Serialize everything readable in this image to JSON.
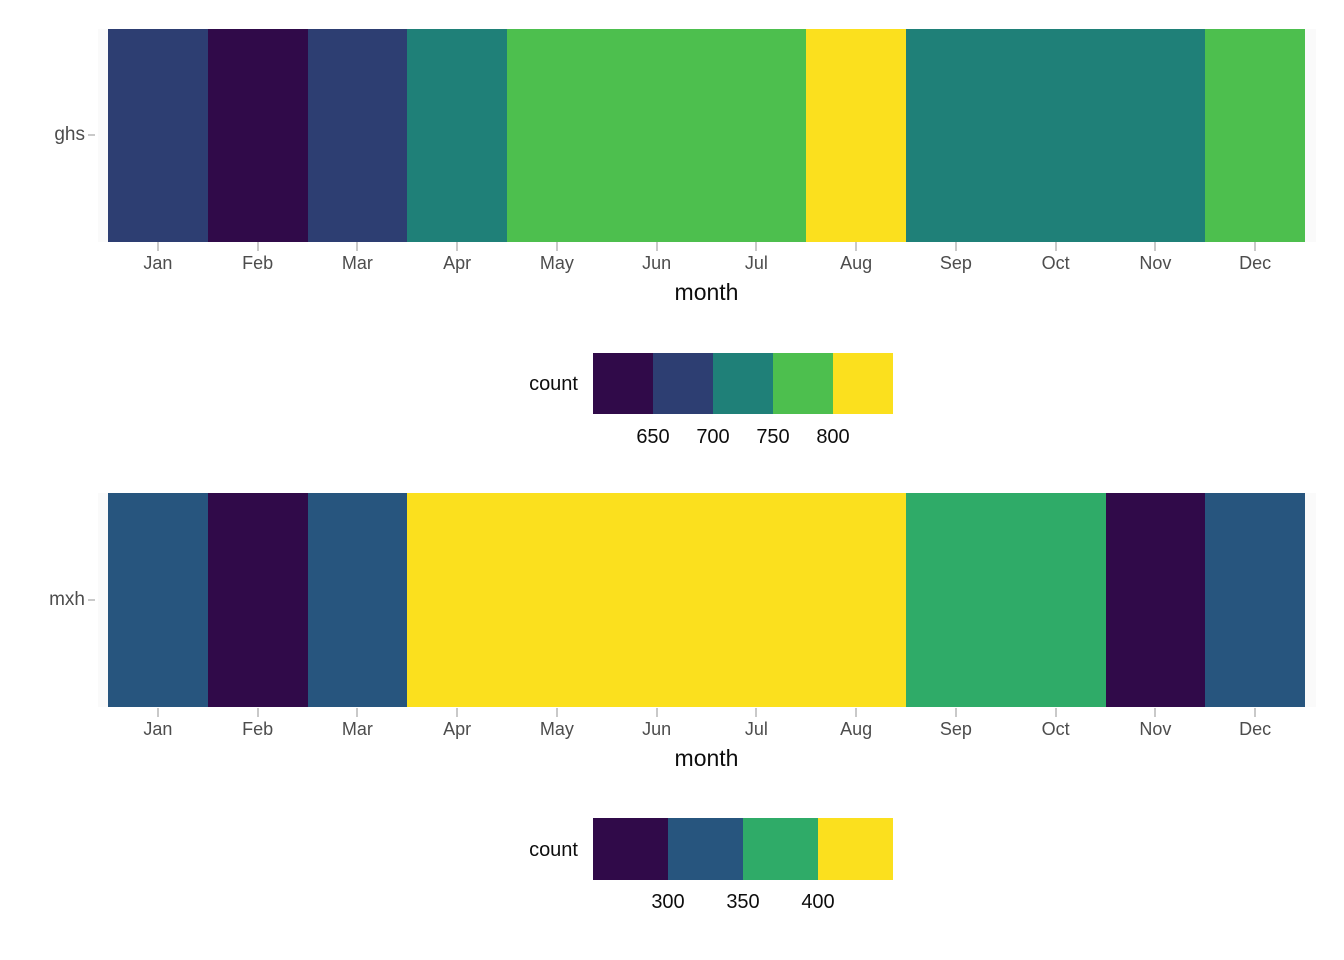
{
  "chart_data": [
    {
      "type": "heatmap",
      "row_label": "ghs",
      "xlabel": "month",
      "categories": [
        "Jan",
        "Feb",
        "Mar",
        "Apr",
        "May",
        "Jun",
        "Jul",
        "Aug",
        "Sep",
        "Oct",
        "Nov",
        "Dec"
      ],
      "cell_colors": [
        "#2D3E72",
        "#300A49",
        "#2D3E72",
        "#1F8078",
        "#4DBF4E",
        "#4DBF4E",
        "#4DBF4E",
        "#FBE01E",
        "#1F8078",
        "#1F8078",
        "#1F8078",
        "#4DBF4E"
      ],
      "cell_bins": [
        "650-700",
        "<650",
        "650-700",
        "700-750",
        "750-800",
        "750-800",
        "750-800",
        ">800",
        "700-750",
        "700-750",
        "700-750",
        "750-800"
      ],
      "grid": false,
      "legend": {
        "title": "count",
        "position": "bottom-center",
        "colors": [
          "#300A49",
          "#2D3E72",
          "#1F8078",
          "#4DBF4E",
          "#FBE01E"
        ],
        "tick_labels": [
          "650",
          "700",
          "750",
          "800"
        ],
        "breaks": [
          650,
          700,
          750,
          800
        ],
        "bin_ranges": [
          "<650",
          "650-700",
          "700-750",
          "750-800",
          ">800"
        ]
      }
    },
    {
      "type": "heatmap",
      "row_label": "mxh",
      "xlabel": "month",
      "categories": [
        "Jan",
        "Feb",
        "Mar",
        "Apr",
        "May",
        "Jun",
        "Jul",
        "Aug",
        "Sep",
        "Oct",
        "Nov",
        "Dec"
      ],
      "cell_colors": [
        "#27557E",
        "#300A49",
        "#27557E",
        "#FBE01E",
        "#FBE01E",
        "#FBE01E",
        "#FBE01E",
        "#FBE01E",
        "#2FAB68",
        "#2FAB68",
        "#300A49",
        "#27557E"
      ],
      "cell_bins": [
        "300-350",
        "<300",
        "300-350",
        ">400",
        ">400",
        ">400",
        ">400",
        ">400",
        "350-400",
        "350-400",
        "<300",
        "300-350"
      ],
      "grid": false,
      "legend": {
        "title": "count",
        "position": "bottom-center",
        "colors": [
          "#300A49",
          "#27557E",
          "#2FAB68",
          "#FBE01E"
        ],
        "tick_labels": [
          "300",
          "350",
          "400"
        ],
        "breaks": [
          300,
          350,
          400
        ],
        "bin_ranges": [
          "<300",
          "300-350",
          "350-400",
          ">400"
        ]
      }
    }
  ],
  "colors": {
    "panel_background": "#FAFAFA",
    "axis_text": "#4D4D4D",
    "axis_title": "#0D0D0D",
    "tick_mark": "#C9C9C9",
    "legend_text": "#0D0D0D",
    "page_background": "#FFFFFF"
  }
}
